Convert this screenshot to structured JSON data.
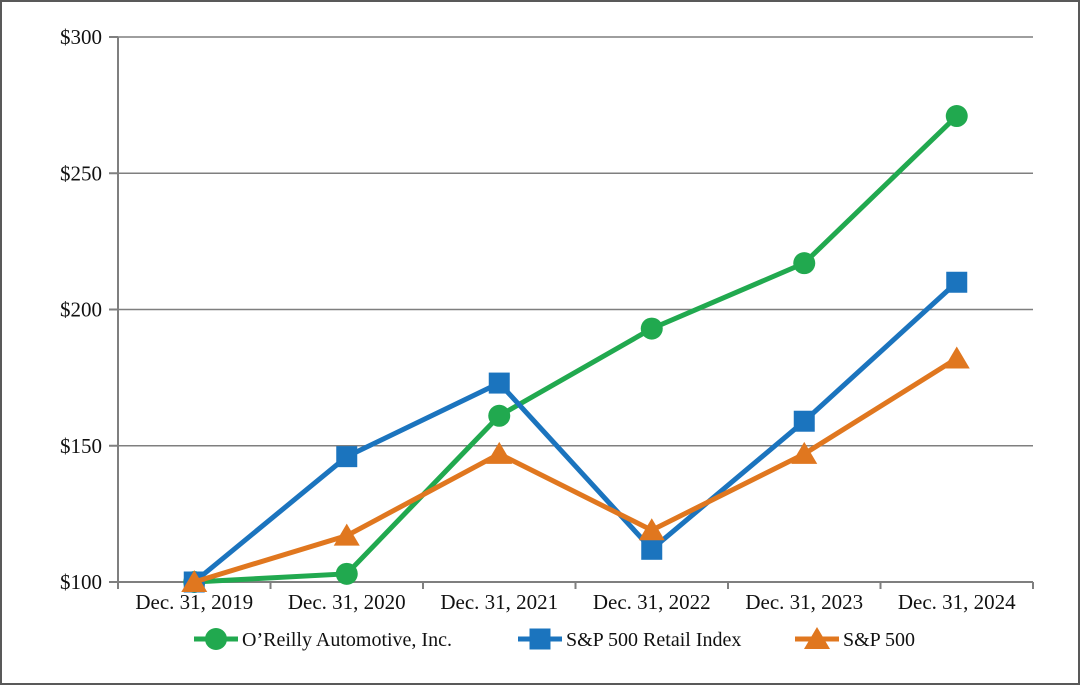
{
  "figure": {
    "background": "#ffffff",
    "border_color": "#595959",
    "grid_color": "#7f7f7f",
    "axis_color": "#7f7f7f",
    "text_color": "#111111"
  },
  "chart_data": {
    "type": "line",
    "title": "",
    "xlabel": "",
    "ylabel": "",
    "categories": [
      "Dec. 31, 2019",
      "Dec. 31, 2020",
      "Dec. 31, 2021",
      "Dec. 31, 2022",
      "Dec. 31, 2023",
      "Dec. 31, 2024"
    ],
    "series": [
      {
        "name": "O’Reilly Automotive, Inc.",
        "marker": "circle",
        "color": "#21a94f",
        "values": [
          100,
          103,
          161,
          193,
          217,
          271
        ]
      },
      {
        "name": "S&P 500 Retail Index",
        "marker": "square",
        "color": "#1b74be",
        "values": [
          100,
          146,
          173,
          112,
          159,
          210
        ]
      },
      {
        "name": "S&P 500",
        "marker": "triangle",
        "color": "#e0771f",
        "values": [
          100,
          117,
          147,
          119,
          147,
          182
        ]
      }
    ],
    "y_axis": {
      "min": 100,
      "max": 300,
      "tick_values": [
        100,
        150,
        200,
        250,
        300
      ],
      "tick_labels": [
        "$100",
        "$150",
        "$200",
        "$250",
        "$300"
      ]
    },
    "grid": true,
    "legend_position": "bottom"
  }
}
